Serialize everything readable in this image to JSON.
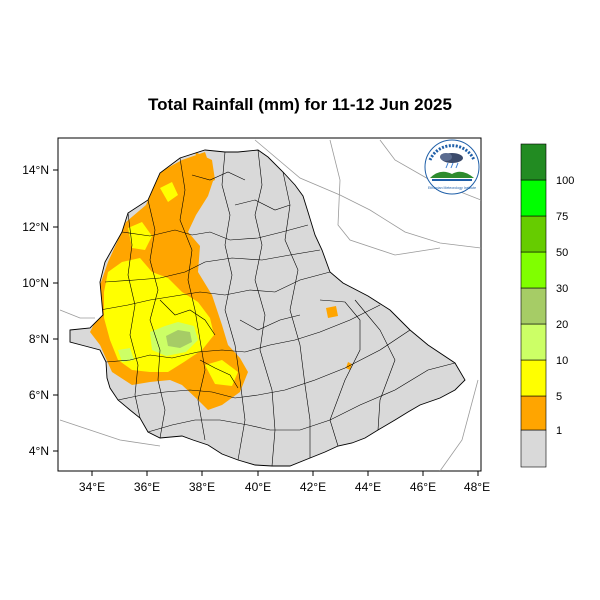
{
  "title": "Total Rainfall (mm) for 11-12 Jun 2025",
  "map": {
    "y_ticks": [
      "14°N",
      "12°N",
      "10°N",
      "8°N",
      "6°N",
      "4°N"
    ],
    "x_ticks": [
      "34°E",
      "36°E",
      "38°E",
      "40°E",
      "42°E",
      "44°E",
      "46°E",
      "48°E"
    ],
    "extent": {
      "lon": [
        33.3,
        48.2
      ],
      "lat": [
        3.2,
        15.0
      ]
    }
  },
  "legend": {
    "levels": [
      "1",
      "5",
      "10",
      "20",
      "30",
      "50",
      "75",
      "100"
    ],
    "colors": [
      "#d9d9d9",
      "#ffa500",
      "#ffff00",
      "#ccff66",
      "#a6cc66",
      "#80ff00",
      "#66cc00",
      "#00ff00",
      "#00e600",
      "#228b22"
    ]
  },
  "logo": {
    "icon": "meteorology-agency-logo-icon",
    "text": "Ethiopian Meteorology Institute"
  }
}
